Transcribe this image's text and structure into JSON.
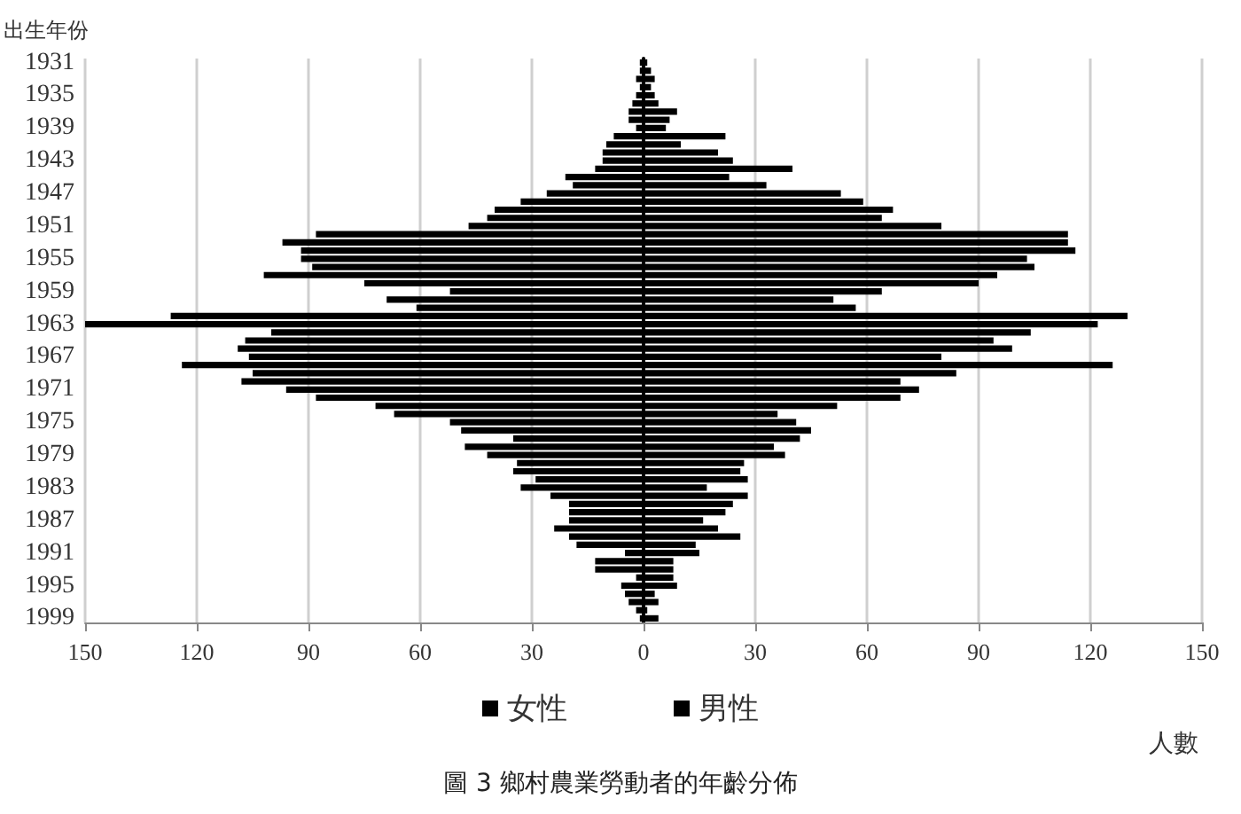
{
  "chart_data": {
    "type": "bar",
    "orientation": "horizontal",
    "title": "圖 3 鄉村農業勞動者的年齡分佈",
    "ylabel": "出生年份",
    "xlabel": "人數",
    "categories": [
      "1931",
      null,
      null,
      null,
      "1935",
      null,
      null,
      null,
      "1939",
      null,
      null,
      null,
      "1943",
      null,
      null,
      null,
      "1947",
      null,
      null,
      null,
      "1951",
      null,
      null,
      null,
      "1955",
      null,
      null,
      null,
      "1959",
      null,
      null,
      null,
      "1963",
      null,
      null,
      null,
      "1967",
      null,
      null,
      null,
      "1971",
      null,
      null,
      null,
      "1975",
      null,
      null,
      null,
      "1979",
      null,
      null,
      null,
      "1983",
      null,
      null,
      null,
      "1987",
      null,
      null,
      null,
      "1991",
      null,
      null,
      null,
      "1995",
      null,
      null,
      null,
      "1999"
    ],
    "series": [
      {
        "name": "女性",
        "color": "#000000",
        "values": [
          -1,
          -1,
          -2,
          -1,
          -2,
          -3,
          -4,
          -4,
          -2,
          -8,
          -10,
          -11,
          -11,
          -13,
          -21,
          -19,
          -26,
          -33,
          -40,
          -42,
          -47,
          -88,
          -97,
          -92,
          -92,
          -89,
          -102,
          -75,
          -52,
          -69,
          -61,
          -127,
          -150,
          -100,
          -107,
          -109,
          -106,
          -124,
          -105,
          -108,
          -96,
          -88,
          -72,
          -67,
          -52,
          -49,
          -35,
          -48,
          -42,
          -34,
          -35,
          -29,
          -33,
          -25,
          -20,
          -20,
          -20,
          -24,
          -20,
          -18,
          -5,
          -13,
          -13,
          -2,
          -6,
          -5,
          -4,
          -2,
          -1
        ]
      },
      {
        "name": "男性",
        "color": "#000000",
        "values": [
          1,
          2,
          3,
          2,
          3,
          4,
          9,
          7,
          6,
          22,
          10,
          20,
          24,
          40,
          23,
          33,
          53,
          59,
          67,
          64,
          80,
          114,
          114,
          116,
          103,
          105,
          95,
          90,
          64,
          51,
          57,
          130,
          122,
          104,
          94,
          99,
          80,
          126,
          84,
          69,
          74,
          69,
          52,
          36,
          41,
          45,
          42,
          35,
          38,
          27,
          26,
          28,
          17,
          28,
          24,
          22,
          16,
          20,
          26,
          14,
          15,
          8,
          8,
          8,
          9,
          3,
          4,
          1,
          4
        ]
      }
    ],
    "xlim": [
      -150,
      150
    ],
    "xticks": [
      {
        "value": -150,
        "label": "150"
      },
      {
        "value": -120,
        "label": "120"
      },
      {
        "value": -90,
        "label": "90"
      },
      {
        "value": -60,
        "label": "60"
      },
      {
        "value": -30,
        "label": "30"
      },
      0,
      30,
      60,
      90,
      120,
      150
    ],
    "grid": "x",
    "legend": "bottom",
    "stacked": true
  }
}
